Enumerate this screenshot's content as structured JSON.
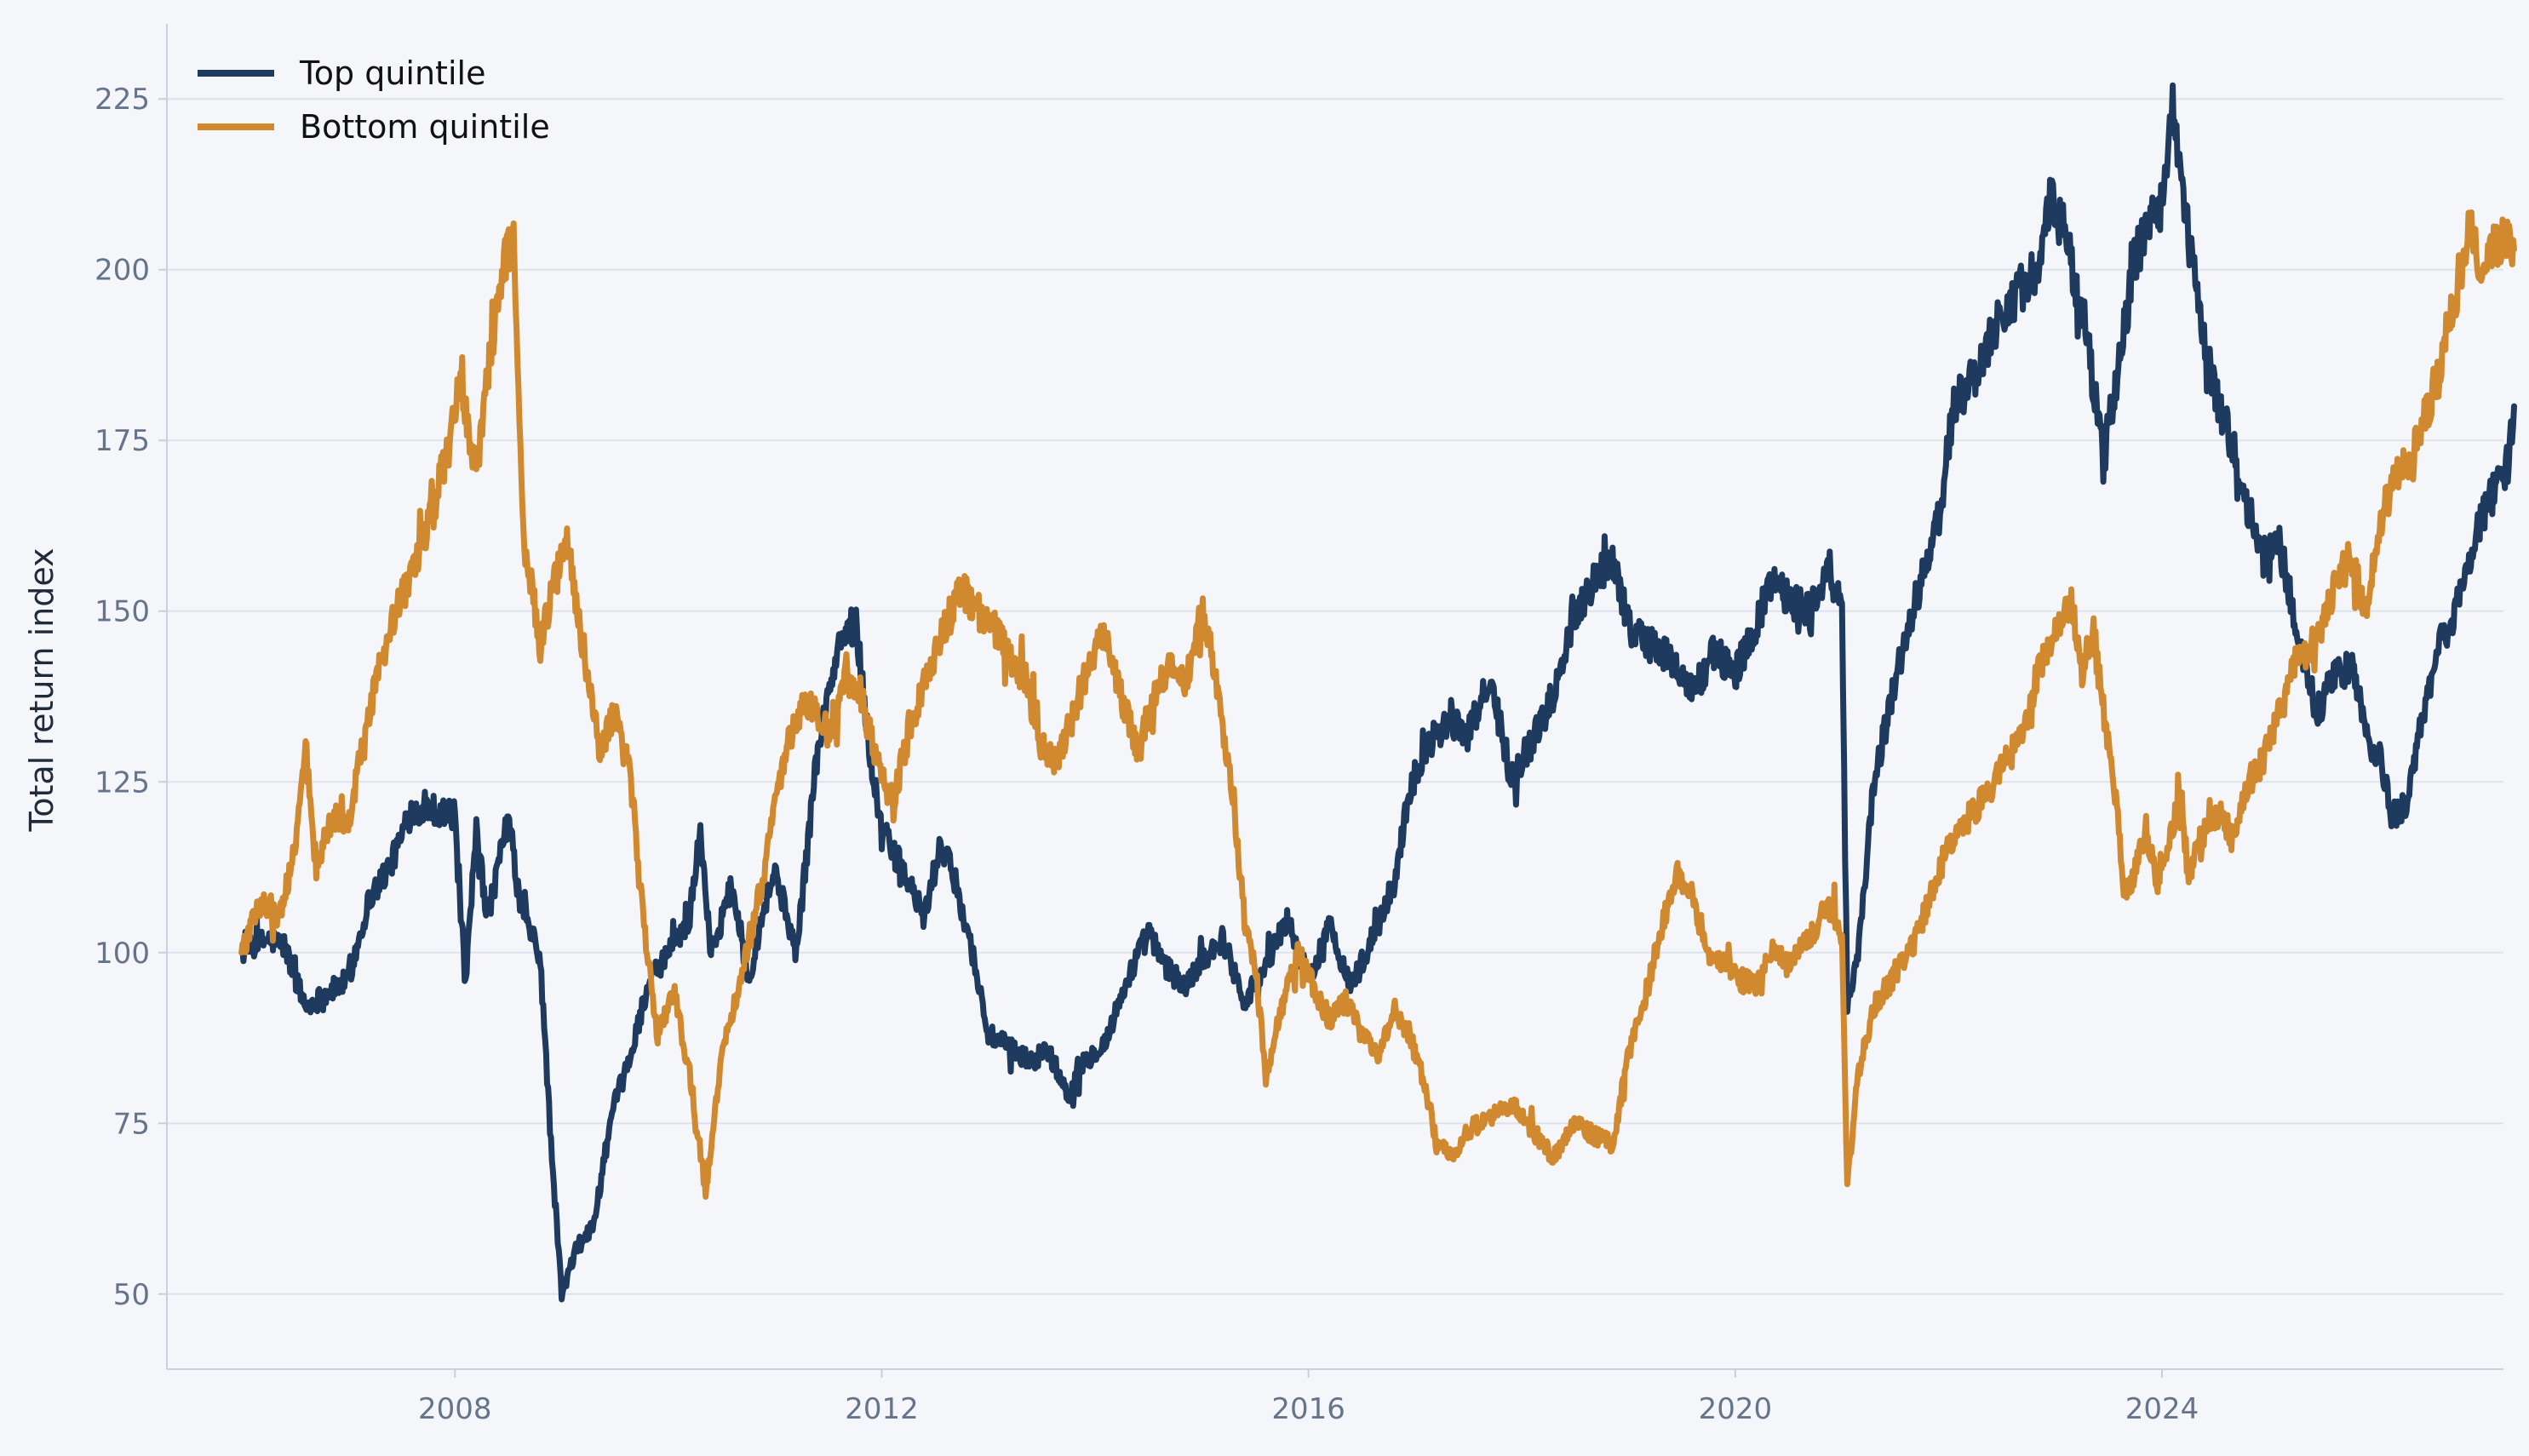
{
  "chart_data": {
    "type": "line",
    "title": "",
    "xlabel": "",
    "ylabel": "Total return index",
    "x_range": [
      2005.3,
      2027.2
    ],
    "ylim": [
      39,
      236
    ],
    "x_ticks": [
      2008,
      2012,
      2016,
      2020,
      2024
    ],
    "y_ticks": [
      50,
      75,
      100,
      125,
      150,
      175,
      200,
      225
    ],
    "grid": {
      "horizontal": true,
      "vertical": false
    },
    "legend": "top-left",
    "background": "#f4f6fa",
    "gridline_color": "#dde2ec",
    "axis_color": "#c8d0dd",
    "series": [
      {
        "name": "Top quintile",
        "color": "#1e3a5f",
        "points": [
          [
            2006.0,
            100
          ],
          [
            2006.25,
            102
          ],
          [
            2006.4,
            101
          ],
          [
            2006.6,
            92
          ],
          [
            2006.8,
            94
          ],
          [
            2007.0,
            96
          ],
          [
            2007.2,
            108
          ],
          [
            2007.4,
            113
          ],
          [
            2007.6,
            121
          ],
          [
            2007.8,
            121
          ],
          [
            2008.0,
            120
          ],
          [
            2008.1,
            95
          ],
          [
            2008.2,
            118
          ],
          [
            2008.3,
            105
          ],
          [
            2008.4,
            112
          ],
          [
            2008.5,
            120
          ],
          [
            2008.6,
            108
          ],
          [
            2008.8,
            99
          ],
          [
            2008.9,
            72
          ],
          [
            2009.0,
            50
          ],
          [
            2009.15,
            57
          ],
          [
            2009.3,
            60
          ],
          [
            2009.4,
            70
          ],
          [
            2009.5,
            78
          ],
          [
            2009.65,
            85
          ],
          [
            2009.8,
            95
          ],
          [
            2010.0,
            100
          ],
          [
            2010.2,
            105
          ],
          [
            2010.3,
            118
          ],
          [
            2010.4,
            100
          ],
          [
            2010.6,
            110
          ],
          [
            2010.75,
            96
          ],
          [
            2010.9,
            107
          ],
          [
            2011.0,
            112
          ],
          [
            2011.2,
            100
          ],
          [
            2011.4,
            130
          ],
          [
            2011.6,
            145
          ],
          [
            2011.75,
            149
          ],
          [
            2011.9,
            128
          ],
          [
            2012.0,
            118
          ],
          [
            2012.2,
            112
          ],
          [
            2012.4,
            105
          ],
          [
            2012.55,
            116
          ],
          [
            2012.7,
            110
          ],
          [
            2012.85,
            100
          ],
          [
            2013.0,
            88
          ],
          [
            2013.2,
            86
          ],
          [
            2013.4,
            84
          ],
          [
            2013.55,
            86
          ],
          [
            2013.75,
            79
          ],
          [
            2013.9,
            84
          ],
          [
            2014.1,
            87
          ],
          [
            2014.3,
            96
          ],
          [
            2014.5,
            103
          ],
          [
            2014.65,
            98
          ],
          [
            2014.85,
            95
          ],
          [
            2015.0,
            99
          ],
          [
            2015.2,
            102
          ],
          [
            2015.4,
            93
          ],
          [
            2015.6,
            98
          ],
          [
            2015.8,
            105
          ],
          [
            2016.0,
            96
          ],
          [
            2016.2,
            104
          ],
          [
            2016.4,
            95
          ],
          [
            2016.6,
            102
          ],
          [
            2016.8,
            110
          ],
          [
            2016.95,
            124
          ],
          [
            2017.1,
            130
          ],
          [
            2017.3,
            134
          ],
          [
            2017.5,
            132
          ],
          [
            2017.7,
            140
          ],
          [
            2017.9,
            126
          ],
          [
            2018.1,
            131
          ],
          [
            2018.3,
            138
          ],
          [
            2018.5,
            150
          ],
          [
            2018.7,
            155
          ],
          [
            2018.85,
            158
          ],
          [
            2019.0,
            148
          ],
          [
            2019.2,
            145
          ],
          [
            2019.4,
            143
          ],
          [
            2019.6,
            138
          ],
          [
            2019.8,
            144
          ],
          [
            2020.0,
            141
          ],
          [
            2020.2,
            148
          ],
          [
            2020.35,
            155
          ],
          [
            2020.5,
            152
          ],
          [
            2020.7,
            150
          ],
          [
            2020.85,
            156
          ],
          [
            2021.0,
            150
          ],
          [
            2021.05,
            92
          ],
          [
            2021.15,
            100
          ],
          [
            2021.3,
            125
          ],
          [
            2021.5,
            140
          ],
          [
            2021.7,
            152
          ],
          [
            2021.9,
            163
          ],
          [
            2022.05,
            180
          ],
          [
            2022.25,
            185
          ],
          [
            2022.45,
            192
          ],
          [
            2022.65,
            197
          ],
          [
            2022.85,
            200
          ],
          [
            2022.95,
            210
          ],
          [
            2023.1,
            205
          ],
          [
            2023.3,
            190
          ],
          [
            2023.45,
            172
          ],
          [
            2023.6,
            187
          ],
          [
            2023.75,
            202
          ],
          [
            2023.9,
            207
          ],
          [
            2024.0,
            210
          ],
          [
            2024.1,
            225
          ],
          [
            2024.2,
            210
          ],
          [
            2024.35,
            193
          ],
          [
            2024.5,
            182
          ],
          [
            2024.65,
            175
          ],
          [
            2024.8,
            165
          ],
          [
            2024.95,
            158
          ],
          [
            2025.1,
            160
          ],
          [
            2025.25,
            148
          ],
          [
            2025.45,
            135
          ],
          [
            2025.6,
            140
          ],
          [
            2025.8,
            142
          ],
          [
            2025.9,
            132
          ],
          [
            2026.05,
            128
          ],
          [
            2026.15,
            120
          ],
          [
            2026.3,
            122
          ],
          [
            2026.45,
            135
          ],
          [
            2026.6,
            145
          ],
          [
            2026.75,
            150
          ],
          [
            2026.85,
            155
          ],
          [
            2026.95,
            162
          ],
          [
            2027.05,
            166
          ],
          [
            2027.15,
            168
          ],
          [
            2027.25,
            172
          ],
          [
            2027.3,
            180
          ]
        ]
      },
      {
        "name": "Bottom quintile",
        "color": "#d0892f",
        "points": [
          [
            2006.0,
            100
          ],
          [
            2006.2,
            108
          ],
          [
            2006.35,
            105
          ],
          [
            2006.5,
            115
          ],
          [
            2006.6,
            130
          ],
          [
            2006.7,
            112
          ],
          [
            2006.85,
            120
          ],
          [
            2007.0,
            118
          ],
          [
            2007.15,
            132
          ],
          [
            2007.3,
            142
          ],
          [
            2007.45,
            150
          ],
          [
            2007.6,
            155
          ],
          [
            2007.8,
            165
          ],
          [
            2007.95,
            175
          ],
          [
            2008.05,
            183
          ],
          [
            2008.2,
            170
          ],
          [
            2008.35,
            190
          ],
          [
            2008.45,
            200
          ],
          [
            2008.55,
            205
          ],
          [
            2008.65,
            160
          ],
          [
            2008.8,
            145
          ],
          [
            2008.95,
            155
          ],
          [
            2009.05,
            161
          ],
          [
            2009.2,
            145
          ],
          [
            2009.35,
            130
          ],
          [
            2009.5,
            135
          ],
          [
            2009.65,
            125
          ],
          [
            2009.8,
            100
          ],
          [
            2009.9,
            88
          ],
          [
            2010.05,
            95
          ],
          [
            2010.2,
            82
          ],
          [
            2010.35,
            65
          ],
          [
            2010.5,
            85
          ],
          [
            2010.7,
            98
          ],
          [
            2010.9,
            112
          ],
          [
            2011.1,
            130
          ],
          [
            2011.3,
            137
          ],
          [
            2011.5,
            132
          ],
          [
            2011.65,
            140
          ],
          [
            2011.8,
            138
          ],
          [
            2011.95,
            128
          ],
          [
            2012.1,
            122
          ],
          [
            2012.3,
            135
          ],
          [
            2012.45,
            142
          ],
          [
            2012.6,
            148
          ],
          [
            2012.75,
            153
          ],
          [
            2012.9,
            150
          ],
          [
            2013.05,
            148
          ],
          [
            2013.2,
            143
          ],
          [
            2013.35,
            140
          ],
          [
            2013.5,
            130
          ],
          [
            2013.65,
            128
          ],
          [
            2013.8,
            135
          ],
          [
            2013.95,
            143
          ],
          [
            2014.1,
            147
          ],
          [
            2014.25,
            137
          ],
          [
            2014.4,
            130
          ],
          [
            2014.55,
            137
          ],
          [
            2014.7,
            143
          ],
          [
            2014.85,
            140
          ],
          [
            2015.0,
            150
          ],
          [
            2015.15,
            138
          ],
          [
            2015.3,
            122
          ],
          [
            2015.4,
            105
          ],
          [
            2015.5,
            98
          ],
          [
            2015.6,
            82
          ],
          [
            2015.75,
            92
          ],
          [
            2015.9,
            100
          ],
          [
            2016.05,
            95
          ],
          [
            2016.2,
            90
          ],
          [
            2016.35,
            93
          ],
          [
            2016.5,
            88
          ],
          [
            2016.65,
            85
          ],
          [
            2016.8,
            92
          ],
          [
            2016.95,
            88
          ],
          [
            2017.1,
            80
          ],
          [
            2017.2,
            72
          ],
          [
            2017.35,
            70
          ],
          [
            2017.5,
            74
          ],
          [
            2017.7,
            76
          ],
          [
            2017.9,
            78
          ],
          [
            2018.1,
            74
          ],
          [
            2018.3,
            70
          ],
          [
            2018.5,
            75
          ],
          [
            2018.7,
            73
          ],
          [
            2018.85,
            72
          ],
          [
            2019.0,
            85
          ],
          [
            2019.15,
            93
          ],
          [
            2019.3,
            103
          ],
          [
            2019.45,
            112
          ],
          [
            2019.6,
            108
          ],
          [
            2019.75,
            100
          ],
          [
            2019.9,
            98
          ],
          [
            2020.05,
            96
          ],
          [
            2020.2,
            95
          ],
          [
            2020.35,
            100
          ],
          [
            2020.5,
            98
          ],
          [
            2020.7,
            102
          ],
          [
            2020.85,
            107
          ],
          [
            2021.0,
            103
          ],
          [
            2021.05,
            66
          ],
          [
            2021.15,
            82
          ],
          [
            2021.3,
            92
          ],
          [
            2021.5,
            97
          ],
          [
            2021.7,
            102
          ],
          [
            2021.9,
            112
          ],
          [
            2022.1,
            118
          ],
          [
            2022.3,
            122
          ],
          [
            2022.5,
            127
          ],
          [
            2022.7,
            132
          ],
          [
            2022.85,
            142
          ],
          [
            2023.0,
            148
          ],
          [
            2023.15,
            152
          ],
          [
            2023.25,
            140
          ],
          [
            2023.35,
            148
          ],
          [
            2023.45,
            135
          ],
          [
            2023.55,
            125
          ],
          [
            2023.65,
            108
          ],
          [
            2023.75,
            112
          ],
          [
            2023.85,
            118
          ],
          [
            2023.95,
            110
          ],
          [
            2024.05,
            115
          ],
          [
            2024.15,
            122
          ],
          [
            2024.25,
            112
          ],
          [
            2024.4,
            118
          ],
          [
            2024.55,
            120
          ],
          [
            2024.65,
            117
          ],
          [
            2024.8,
            125
          ],
          [
            2024.95,
            128
          ],
          [
            2025.1,
            135
          ],
          [
            2025.25,
            142
          ],
          [
            2025.4,
            145
          ],
          [
            2025.55,
            150
          ],
          [
            2025.65,
            155
          ],
          [
            2025.8,
            158
          ],
          [
            2025.9,
            150
          ],
          [
            2026.05,
            163
          ],
          [
            2026.15,
            168
          ],
          [
            2026.3,
            172
          ],
          [
            2026.45,
            178
          ],
          [
            2026.6,
            185
          ],
          [
            2026.7,
            193
          ],
          [
            2026.8,
            200
          ],
          [
            2026.9,
            208
          ],
          [
            2027.0,
            198
          ],
          [
            2027.1,
            203
          ],
          [
            2027.2,
            205
          ],
          [
            2027.3,
            203
          ]
        ]
      }
    ]
  }
}
